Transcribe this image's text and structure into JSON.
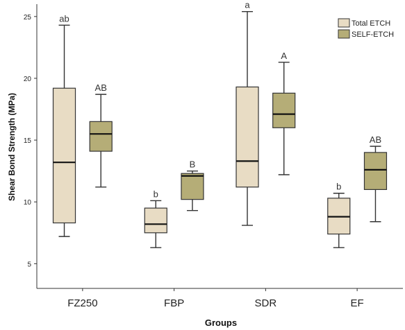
{
  "chart_data": {
    "type": "box",
    "xlabel": "Groups",
    "ylabel": "Shear Bond Strength (MPa)",
    "ylim": [
      3,
      26
    ],
    "yticks": [
      5,
      10,
      15,
      20,
      25
    ],
    "categories": [
      "FZ250",
      "FBP",
      "SDR",
      "EF"
    ],
    "legend_position": "top-right",
    "series": [
      {
        "name": "Total ETCH",
        "color": "#e8dcc4",
        "boxes": [
          {
            "whisker_low": 7.2,
            "q1": 8.3,
            "median": 13.2,
            "q3": 19.2,
            "whisker_high": 24.3,
            "label": "ab"
          },
          {
            "whisker_low": 6.3,
            "q1": 7.5,
            "median": 8.2,
            "q3": 9.5,
            "whisker_high": 10.1,
            "label": "b"
          },
          {
            "whisker_low": 8.1,
            "q1": 11.2,
            "median": 13.3,
            "q3": 19.3,
            "whisker_high": 25.4,
            "label": "a"
          },
          {
            "whisker_low": 6.3,
            "q1": 7.4,
            "median": 8.8,
            "q3": 10.3,
            "whisker_high": 10.7,
            "label": "b"
          }
        ]
      },
      {
        "name": "SELF-ETCH",
        "color": "#b5ad77",
        "boxes": [
          {
            "whisker_low": 11.2,
            "q1": 14.1,
            "median": 15.5,
            "q3": 16.5,
            "whisker_high": 18.7,
            "label": "AB"
          },
          {
            "whisker_low": 9.3,
            "q1": 10.2,
            "median": 12.1,
            "q3": 12.3,
            "whisker_high": 12.5,
            "label": "B"
          },
          {
            "whisker_low": 12.2,
            "q1": 16.0,
            "median": 17.1,
            "q3": 18.8,
            "whisker_high": 21.3,
            "label": "A"
          },
          {
            "whisker_low": 8.4,
            "q1": 11.0,
            "median": 12.6,
            "q3": 14.0,
            "whisker_high": 14.5,
            "label": "AB"
          }
        ]
      }
    ]
  }
}
